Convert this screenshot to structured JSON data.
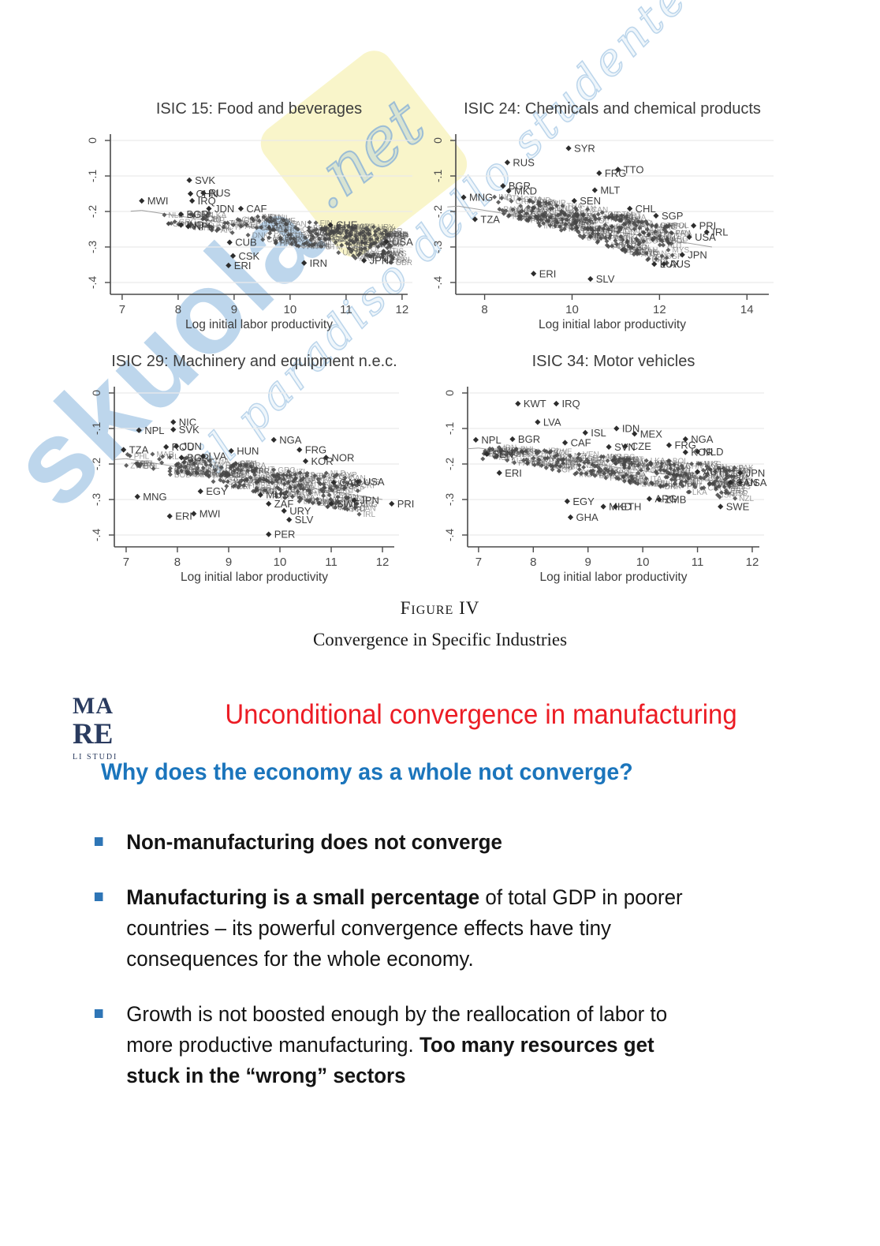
{
  "page": {
    "background": "#ffffff"
  },
  "watermark": {
    "brand_main": "skuola",
    "brand_suffix": ".net",
    "tagline": "il paradiso dello studente",
    "accent_blue": "#82b0db",
    "accent_yellow": "#f8f2b9"
  },
  "figure": {
    "caption_label": "Figure IV",
    "caption_title": "Convergence in Specific Industries"
  },
  "slide": {
    "logo_lines": [
      "MA",
      "RE",
      "LI STUDI"
    ],
    "logo_color": "#2a3b5f",
    "title": "Unconditional convergence in manufacturing",
    "title_color": "#ec1c24",
    "subtitle": "Why does the economy as a whole not converge?",
    "subtitle_color": "#1b75bc",
    "bullet_square_color": "#2e75b6",
    "bullets": [
      {
        "segments": [
          {
            "text": "Non-manufacturing does not converge",
            "bold": true
          }
        ]
      },
      {
        "segments": [
          {
            "text": "Manufacturing is a small percentage",
            "bold": true
          },
          {
            "text": " of total GDP in poorer countries – its powerful convergence effects have tiny consequences for the whole economy.",
            "bold": false
          }
        ]
      },
      {
        "segments": [
          {
            "text": "Growth is not boosted enough by the reallocation of labor to more productive manufacturing. ",
            "bold": false
          },
          {
            "text": "Too many resources get stuck in the “wrong” sectors",
            "bold": true
          }
        ]
      }
    ]
  },
  "cloud_label_pool": [
    "ARG",
    "AUS",
    "AUT",
    "BEL",
    "BOL",
    "BRA",
    "CAN",
    "CHL",
    "CHN",
    "COL",
    "CRI",
    "CYP",
    "DNK",
    "ECU",
    "ESP",
    "FIN",
    "FRA",
    "GBR",
    "GRC",
    "GTM",
    "HKG",
    "HND",
    "IDN",
    "IND",
    "IRL",
    "ISR",
    "ITA",
    "KEN",
    "LKA",
    "MAR",
    "MYS",
    "NLD",
    "NZL",
    "PAK",
    "PAN",
    "PHL",
    "POL",
    "PRT",
    "SGP",
    "THA",
    "TUR",
    "URY",
    "VEN",
    "ZWE"
  ],
  "chart_data": [
    {
      "type": "scatter",
      "title": "ISIC 15: Food and beverages",
      "xlabel": "Log initial labor productivity",
      "xlim": [
        6.79,
        12.1
      ],
      "xticks": [
        7,
        8,
        9,
        10,
        11,
        12
      ],
      "ylim": [
        -0.45,
        0.02
      ],
      "yticks": [
        0,
        -0.1,
        -0.2,
        -0.3,
        -0.4
      ],
      "ytick_labels": [
        "0",
        "-.1",
        "-.2",
        "-.3",
        "-.4"
      ],
      "grid": true,
      "trend": {
        "x1": 7.35,
        "y1": -0.197,
        "x2": 11.9,
        "y2": -0.305
      },
      "cloud": {
        "count": 210,
        "x_min": 7.5,
        "x_max": 11.85,
        "y_start": -0.205,
        "y_end": -0.3,
        "jitter": 0.034,
        "skew": 0.55,
        "seed": 7
      },
      "labeled_points": [
        {
          "label": "SVK",
          "x": 8.2,
          "y": -0.112
        },
        {
          "label": "CHN",
          "x": 8.22,
          "y": -0.15
        },
        {
          "label": "RUS",
          "x": 8.45,
          "y": -0.148
        },
        {
          "label": "IRQ",
          "x": 8.25,
          "y": -0.17
        },
        {
          "label": "MWI",
          "x": 7.35,
          "y": -0.17
        },
        {
          "label": "JDN",
          "x": 8.55,
          "y": -0.192
        },
        {
          "label": "CAF",
          "x": 9.12,
          "y": -0.192
        },
        {
          "label": "BGR",
          "x": 8.05,
          "y": -0.208
        },
        {
          "label": "IND",
          "x": 8.05,
          "y": -0.238
        },
        {
          "label": "NPL",
          "x": 8.18,
          "y": -0.242
        },
        {
          "label": "CUB",
          "x": 8.92,
          "y": -0.287
        },
        {
          "label": "CSK",
          "x": 8.98,
          "y": -0.325
        },
        {
          "label": "ERI",
          "x": 8.9,
          "y": -0.352
        },
        {
          "label": "CHE",
          "x": 10.72,
          "y": -0.238
        },
        {
          "label": "USA",
          "x": 11.72,
          "y": -0.285
        },
        {
          "label": "IRN",
          "x": 10.25,
          "y": -0.345
        },
        {
          "label": "JPN",
          "x": 11.32,
          "y": -0.338
        }
      ]
    },
    {
      "type": "scatter",
      "title": "ISIC 24: Chemicals and chemical products",
      "xlabel": "Log initial labor productivity",
      "xlim": [
        7.34,
        14.5
      ],
      "xticks": [
        8,
        10,
        12,
        14
      ],
      "ylim": [
        -0.45,
        0.02
      ],
      "yticks": [
        0,
        -0.1,
        -0.2,
        -0.3,
        -0.4
      ],
      "ytick_labels": [
        "0",
        "-.1",
        "-.2",
        "-.3",
        "-.4"
      ],
      "grid": true,
      "trend": {
        "x1": 7.4,
        "y1": -0.185,
        "x2": 13.2,
        "y2": -0.3
      },
      "cloud": {
        "count": 230,
        "x_min": 8.2,
        "x_max": 12.3,
        "y_start": -0.175,
        "y_end": -0.295,
        "jitter": 0.042,
        "skew": 0.75,
        "seed": 13
      },
      "labeled_points": [
        {
          "label": "SYR",
          "x": 9.92,
          "y": -0.022
        },
        {
          "label": "RUS",
          "x": 8.52,
          "y": -0.062
        },
        {
          "label": "TTO",
          "x": 11.05,
          "y": -0.082
        },
        {
          "label": "FRG",
          "x": 10.62,
          "y": -0.092
        },
        {
          "label": "BGR",
          "x": 8.42,
          "y": -0.128
        },
        {
          "label": "MKD",
          "x": 8.55,
          "y": -0.142
        },
        {
          "label": "MLT",
          "x": 10.52,
          "y": -0.14
        },
        {
          "label": "MNG",
          "x": 7.52,
          "y": -0.16
        },
        {
          "label": "SEN",
          "x": 10.05,
          "y": -0.17
        },
        {
          "label": "CHL",
          "x": 11.32,
          "y": -0.192
        },
        {
          "label": "SGP",
          "x": 11.92,
          "y": -0.212
        },
        {
          "label": "TZA",
          "x": 7.78,
          "y": -0.222
        },
        {
          "label": "PRI",
          "x": 12.78,
          "y": -0.24
        },
        {
          "label": "IRL",
          "x": 13.08,
          "y": -0.258
        },
        {
          "label": "USA",
          "x": 12.68,
          "y": -0.272
        },
        {
          "label": "JPN",
          "x": 12.52,
          "y": -0.322
        },
        {
          "label": "LUX",
          "x": 11.88,
          "y": -0.348
        },
        {
          "label": "AUS",
          "x": 12.1,
          "y": -0.348
        },
        {
          "label": "ERI",
          "x": 9.12,
          "y": -0.375
        },
        {
          "label": "SLV",
          "x": 10.42,
          "y": -0.39
        }
      ]
    },
    {
      "type": "scatter",
      "title": "ISIC 29: Machinery and equipment n.e.c.",
      "xlabel": "Log initial labor productivity",
      "xlim": [
        6.77,
        12.23
      ],
      "xticks": [
        7,
        8,
        9,
        10,
        11,
        12
      ],
      "ylim": [
        -0.45,
        0.02
      ],
      "yticks": [
        0,
        -0.1,
        -0.2,
        -0.3,
        -0.4
      ],
      "ytick_labels": [
        "0",
        "-.1",
        "-.2",
        "-.3",
        "-.4"
      ],
      "grid": true,
      "trend": {
        "x1": 7.0,
        "y1": -0.185,
        "x2": 12.0,
        "y2": -0.3
      },
      "cloud": {
        "count": 215,
        "x_min": 7.0,
        "x_max": 11.6,
        "y_start": -0.185,
        "y_end": -0.29,
        "jitter": 0.036,
        "skew": 0.8,
        "seed": 21
      },
      "labeled_points": [
        {
          "label": "NIC",
          "x": 7.92,
          "y": -0.082
        },
        {
          "label": "SVK",
          "x": 7.92,
          "y": -0.103
        },
        {
          "label": "NPL",
          "x": 7.25,
          "y": -0.105
        },
        {
          "label": "NGA",
          "x": 9.88,
          "y": -0.132
        },
        {
          "label": "ROU",
          "x": 7.78,
          "y": -0.152
        },
        {
          "label": "JDN",
          "x": 7.98,
          "y": -0.15
        },
        {
          "label": "TZA",
          "x": 6.95,
          "y": -0.16
        },
        {
          "label": "HUN",
          "x": 9.05,
          "y": -0.163
        },
        {
          "label": "FRG",
          "x": 10.38,
          "y": -0.16
        },
        {
          "label": "BGR",
          "x": 8.08,
          "y": -0.182
        },
        {
          "label": "LVA",
          "x": 8.5,
          "y": -0.178
        },
        {
          "label": "NOR",
          "x": 10.9,
          "y": -0.182
        },
        {
          "label": "KOR",
          "x": 10.5,
          "y": -0.192
        },
        {
          "label": "USA",
          "x": 11.52,
          "y": -0.25
        },
        {
          "label": "CAN",
          "x": 11.05,
          "y": -0.252
        },
        {
          "label": "MNG",
          "x": 7.22,
          "y": -0.292
        },
        {
          "label": "EGY",
          "x": 8.45,
          "y": -0.277
        },
        {
          "label": "MUS",
          "x": 9.62,
          "y": -0.287
        },
        {
          "label": "ZAF",
          "x": 9.78,
          "y": -0.312
        },
        {
          "label": "SWE",
          "x": 11.0,
          "y": -0.312
        },
        {
          "label": "JPN",
          "x": 11.45,
          "y": -0.302
        },
        {
          "label": "PRI",
          "x": 12.18,
          "y": -0.312
        },
        {
          "label": "URY",
          "x": 10.08,
          "y": -0.332
        },
        {
          "label": "ERI",
          "x": 7.85,
          "y": -0.347
        },
        {
          "label": "MWI",
          "x": 8.32,
          "y": -0.34
        },
        {
          "label": "SLV",
          "x": 10.18,
          "y": -0.357
        },
        {
          "label": "PER",
          "x": 9.78,
          "y": -0.398
        }
      ]
    },
    {
      "type": "scatter",
      "title": "ISIC 34: Motor vehicles",
      "xlabel": "Log initial labor productivity",
      "xlim": [
        6.8,
        12.13
      ],
      "xticks": [
        7,
        8,
        9,
        10,
        11,
        12
      ],
      "ylim": [
        -0.45,
        0.02
      ],
      "yticks": [
        0,
        -0.1,
        -0.2,
        -0.3,
        -0.4
      ],
      "ytick_labels": [
        "0",
        "-.1",
        "-.2",
        "-.3",
        "-.4"
      ],
      "grid": true,
      "trend": {
        "x1": 7.0,
        "y1": -0.155,
        "x2": 11.9,
        "y2": -0.26
      },
      "cloud": {
        "count": 235,
        "x_min": 7.0,
        "x_max": 11.7,
        "y_start": -0.165,
        "y_end": -0.255,
        "jitter": 0.032,
        "skew": 0.8,
        "seed": 33
      },
      "labeled_points": [
        {
          "label": "KWT",
          "x": 7.72,
          "y": -0.03
        },
        {
          "label": "IRQ",
          "x": 8.42,
          "y": -0.03
        },
        {
          "label": "LVA",
          "x": 8.08,
          "y": -0.082
        },
        {
          "label": "IDN",
          "x": 9.52,
          "y": -0.1
        },
        {
          "label": "ISL",
          "x": 8.95,
          "y": -0.112
        },
        {
          "label": "MEX",
          "x": 9.85,
          "y": -0.115
        },
        {
          "label": "NPL",
          "x": 6.95,
          "y": -0.132
        },
        {
          "label": "BGR",
          "x": 7.62,
          "y": -0.13
        },
        {
          "label": "CAF",
          "x": 8.58,
          "y": -0.14
        },
        {
          "label": "NGA",
          "x": 10.78,
          "y": -0.13
        },
        {
          "label": "FRG",
          "x": 10.48,
          "y": -0.147
        },
        {
          "label": "SVN",
          "x": 9.38,
          "y": -0.152
        },
        {
          "label": "CZE",
          "x": 9.68,
          "y": -0.15
        },
        {
          "label": "SEN",
          "x": 7.15,
          "y": -0.172
        },
        {
          "label": "KOR",
          "x": 10.78,
          "y": -0.167
        },
        {
          "label": "NLD",
          "x": 11.0,
          "y": -0.165
        },
        {
          "label": "ERI",
          "x": 7.38,
          "y": -0.225
        },
        {
          "label": "AUT",
          "x": 11.0,
          "y": -0.222
        },
        {
          "label": "JPN",
          "x": 11.78,
          "y": -0.225
        },
        {
          "label": "CAN",
          "x": 11.6,
          "y": -0.252
        },
        {
          "label": "USA",
          "x": 11.78,
          "y": -0.252
        },
        {
          "label": "EGY",
          "x": 8.62,
          "y": -0.305
        },
        {
          "label": "ARG",
          "x": 10.12,
          "y": -0.298
        },
        {
          "label": "ZMB",
          "x": 10.3,
          "y": -0.3
        },
        {
          "label": "MKD",
          "x": 9.28,
          "y": -0.32
        },
        {
          "label": "ETH",
          "x": 9.5,
          "y": -0.32
        },
        {
          "label": "GHA",
          "x": 8.68,
          "y": -0.35
        },
        {
          "label": "SWE",
          "x": 11.42,
          "y": -0.32
        }
      ]
    }
  ]
}
